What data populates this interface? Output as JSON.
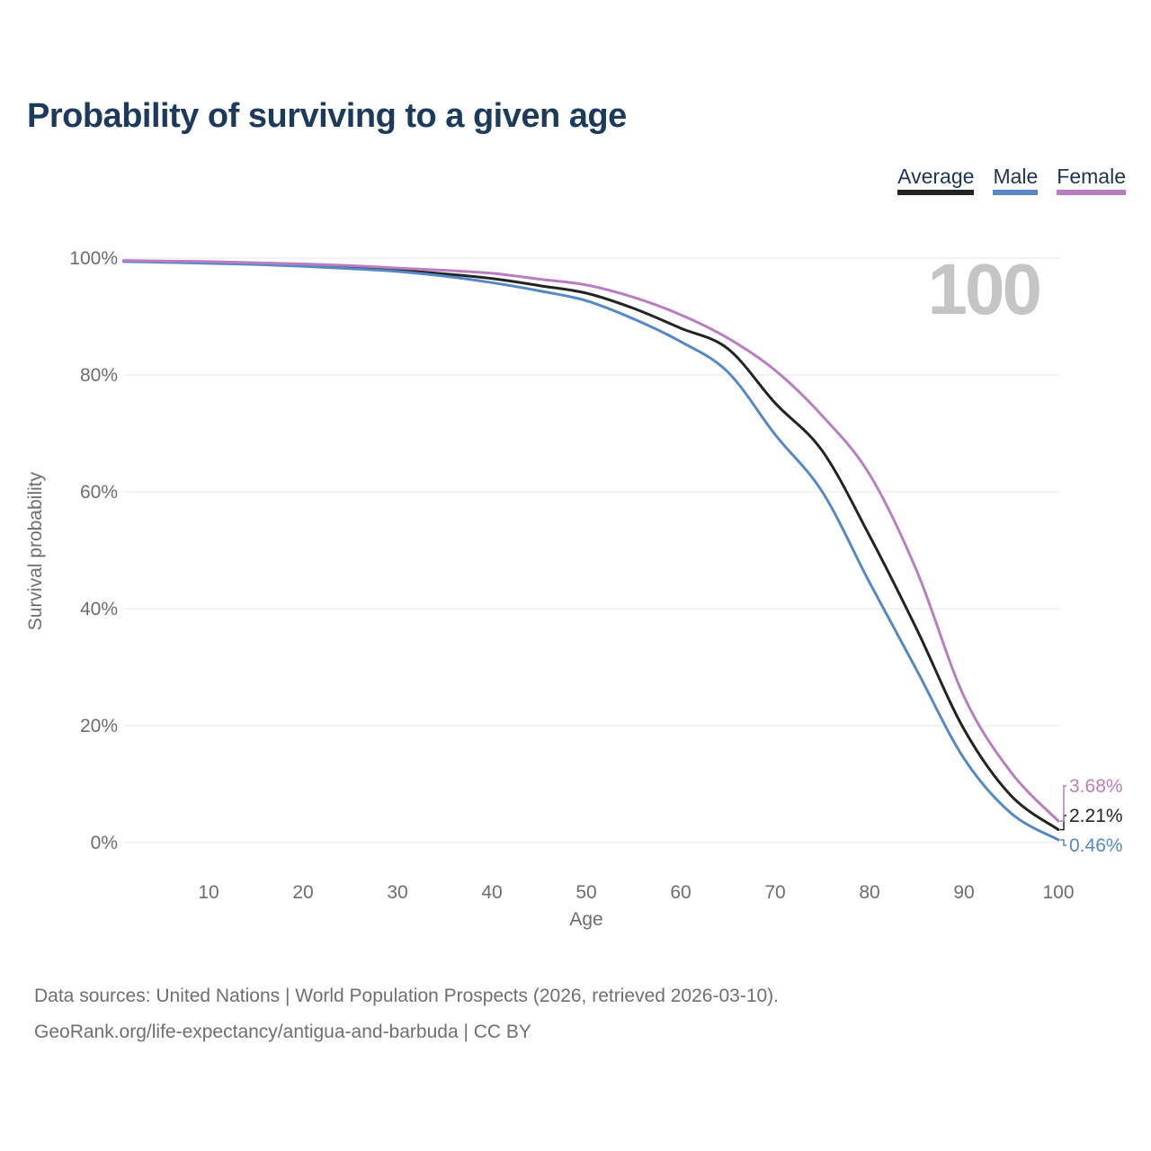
{
  "page": {
    "title": "Probability of surviving to a given age",
    "watermark": "100",
    "footer": {
      "line1": "Data sources: United Nations | World Population Prospects (2026, retrieved 2026-03-10).",
      "line2": "GeoRank.org/life-expectancy/antigua-and-barbuda | CC BY"
    }
  },
  "legend": {
    "items": [
      {
        "label": "Average",
        "color": "#232323"
      },
      {
        "label": "Male",
        "color": "#5588c7"
      },
      {
        "label": "Female",
        "color": "#b87ebf"
      }
    ]
  },
  "chart_data": {
    "type": "line",
    "title": "Probability of surviving to a given age",
    "xlabel": "Age",
    "ylabel": "Survival probability",
    "xlim": [
      0,
      100
    ],
    "ylim": [
      0,
      100
    ],
    "grid": "horizontal-only",
    "grid_color": "#e9e9e9",
    "legend_position": "top-right",
    "annotation": "100",
    "x_ticks": [
      10,
      20,
      30,
      40,
      50,
      60,
      70,
      80,
      90,
      100
    ],
    "y_ticks": [
      {
        "value": 0,
        "label": "0%"
      },
      {
        "value": 20,
        "label": "20%"
      },
      {
        "value": 40,
        "label": "40%"
      },
      {
        "value": 60,
        "label": "60%"
      },
      {
        "value": 80,
        "label": "80%"
      },
      {
        "value": 100,
        "label": "100%"
      }
    ],
    "x": [
      1,
      5,
      10,
      15,
      20,
      25,
      30,
      35,
      40,
      45,
      50,
      55,
      60,
      65,
      70,
      75,
      80,
      85,
      90,
      95,
      100
    ],
    "series": [
      {
        "name": "Average",
        "color": "#232323",
        "end_label": "2.21%",
        "values": [
          99.5,
          99.4,
          99.3,
          99.0,
          98.7,
          98.3,
          97.9,
          97.3,
          96.5,
          95.3,
          94.0,
          91.4,
          88.0,
          84.5,
          75.2,
          67.0,
          52.5,
          36.5,
          19.4,
          8.0,
          2.21
        ]
      },
      {
        "name": "Male",
        "color": "#5588c7",
        "end_label": "0.46%",
        "values": [
          99.4,
          99.3,
          99.1,
          98.9,
          98.6,
          98.2,
          97.7,
          96.9,
          95.8,
          94.4,
          92.7,
          89.6,
          85.7,
          80.5,
          69.8,
          60.0,
          44.5,
          29.5,
          14.4,
          5.0,
          0.46
        ]
      },
      {
        "name": "Female",
        "color": "#b87ebf",
        "end_label": "3.68%",
        "values": [
          99.6,
          99.5,
          99.4,
          99.2,
          99.0,
          98.7,
          98.3,
          97.9,
          97.4,
          96.4,
          95.4,
          93.3,
          90.3,
          86.3,
          80.8,
          73.0,
          63.0,
          46.5,
          25.0,
          12.0,
          3.68
        ]
      }
    ]
  }
}
